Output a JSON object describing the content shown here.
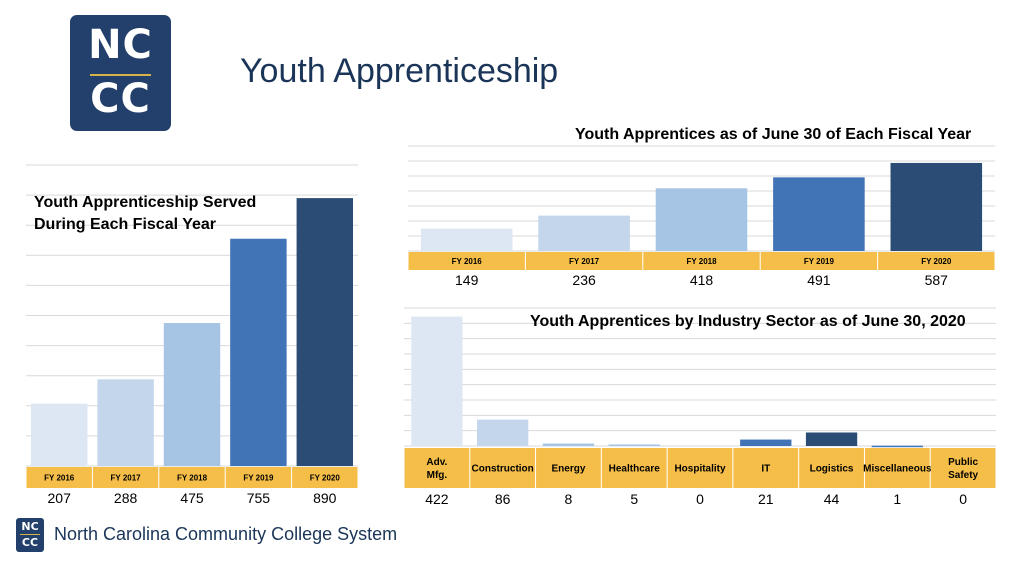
{
  "header": {
    "logo_top": "NC",
    "logo_bottom": "CC",
    "title": "Youth Apprenticeship"
  },
  "footer": {
    "logo_top": "NC",
    "logo_bottom": "CC",
    "text": "North Carolina Community College System"
  },
  "colors": {
    "navy": "#22406b",
    "gold_label": "#f5be49",
    "fy2016": "#dce7f3",
    "fy2017": "#c3d6ec",
    "fy2018": "#a6c4e3",
    "fy2019": "#4174b6",
    "fy2020": "#2b4d75"
  },
  "chart_data": [
    {
      "type": "bar",
      "title": "Youth Apprenticeship Served During Each Fiscal Year",
      "title_lines": [
        "Youth Apprenticeship Served",
        "During Each Fiscal Year"
      ],
      "categories": [
        "FY 2016",
        "FY 2017",
        "FY 2018",
        "FY 2019",
        "FY 2020"
      ],
      "values": [
        207,
        288,
        475,
        755,
        890
      ],
      "value_labels": [
        "207",
        "288",
        "475",
        "755",
        "890"
      ],
      "ylim": [
        0,
        1000
      ],
      "grid": true
    },
    {
      "type": "bar",
      "title": "Youth Apprentices as of June 30 of Each Fiscal Year",
      "categories": [
        "FY 2016",
        "FY 2017",
        "FY 2018",
        "FY 2019",
        "FY 2020"
      ],
      "values": [
        149,
        236,
        418,
        491,
        587
      ],
      "value_labels": [
        "149",
        "236",
        "418",
        "491",
        "587"
      ],
      "ylim": [
        0,
        700
      ],
      "grid": true
    },
    {
      "type": "bar",
      "title": "Youth Apprentices by Industry Sector as of June 30, 2020",
      "categories": [
        "Adv. Mfg.",
        "Construction",
        "Energy",
        "Healthcare",
        "Hospitality",
        "IT",
        "Logistics",
        "Miscellaneous",
        "Public Safety"
      ],
      "values": [
        422,
        86,
        8,
        5,
        0,
        21,
        44,
        1,
        0
      ],
      "value_labels": [
        "422",
        "86",
        "8",
        "5",
        "0",
        "21",
        "44",
        "1",
        "0"
      ],
      "ylim": [
        0,
        450
      ],
      "grid": true
    }
  ]
}
